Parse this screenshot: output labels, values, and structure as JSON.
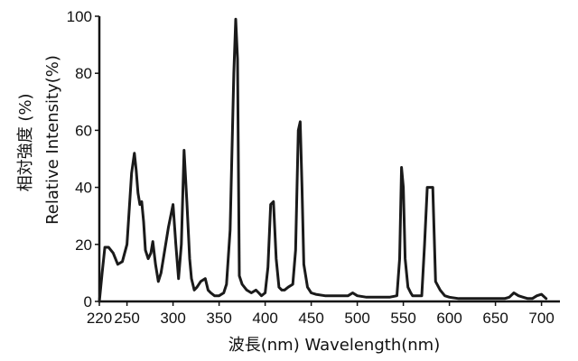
{
  "chart_data": {
    "type": "line",
    "xlabel": "波長(nm)  Wavelength(nm)",
    "ylabel": "相対強度 (%)\nRelative Intensity(%)",
    "xlim": [
      220,
      720
    ],
    "ylim": [
      0,
      100
    ],
    "x_ticks": [
      220,
      250,
      300,
      350,
      400,
      450,
      500,
      550,
      600,
      650,
      700
    ],
    "y_ticks": [
      0,
      20,
      40,
      60,
      80,
      100
    ],
    "grid": false,
    "colors": {
      "line": "#1a1a1a",
      "axis": "#111111"
    },
    "series": [
      {
        "x": [
          220,
          223,
          226,
          230,
          235,
          240,
          245,
          250,
          255,
          258,
          260,
          262,
          264,
          266,
          268,
          270,
          273,
          276,
          278,
          281,
          284,
          287,
          290,
          295,
          300,
          303,
          306,
          309,
          312,
          315,
          318,
          320,
          323,
          326,
          330,
          335,
          338,
          341,
          345,
          350,
          355,
          358,
          362,
          366,
          368,
          370,
          372,
          375,
          380,
          385,
          390,
          393,
          396,
          400,
          403,
          406,
          409,
          412,
          415,
          418,
          421,
          425,
          430,
          433,
          436,
          438,
          440,
          442,
          446,
          450,
          455,
          465,
          475,
          485,
          490,
          495,
          500,
          510,
          525,
          535,
          543,
          546,
          548,
          550,
          552,
          555,
          558,
          560,
          565,
          570,
          573,
          576,
          578,
          582,
          585,
          590,
          595,
          600,
          610,
          625,
          640,
          650,
          660,
          665,
          670,
          675,
          680,
          685,
          690,
          695,
          700,
          705
        ],
        "y": [
          0,
          10,
          19,
          19,
          17,
          13,
          14,
          20,
          45,
          52,
          46,
          38,
          34,
          35,
          28,
          18,
          15,
          17,
          21,
          13,
          7,
          10,
          16,
          26,
          34,
          20,
          8,
          20,
          53,
          35,
          15,
          8,
          4,
          5,
          7,
          8,
          4,
          3,
          2,
          2,
          3,
          6,
          25,
          80,
          99,
          85,
          9,
          6,
          4,
          3,
          4,
          3,
          2,
          3,
          12,
          34,
          35,
          15,
          5,
          4,
          4,
          5,
          6,
          18,
          60,
          63,
          40,
          13,
          5,
          3,
          2.5,
          2,
          2,
          2,
          2,
          3,
          2,
          1.5,
          1.5,
          1.5,
          2,
          15,
          47,
          40,
          15,
          5,
          3,
          2,
          2,
          2,
          20,
          40,
          40,
          40,
          7,
          4,
          2,
          1.5,
          1,
          1,
          1,
          1,
          1,
          1.5,
          3,
          2,
          1.5,
          1,
          1,
          2,
          2.5,
          1
        ]
      }
    ]
  }
}
